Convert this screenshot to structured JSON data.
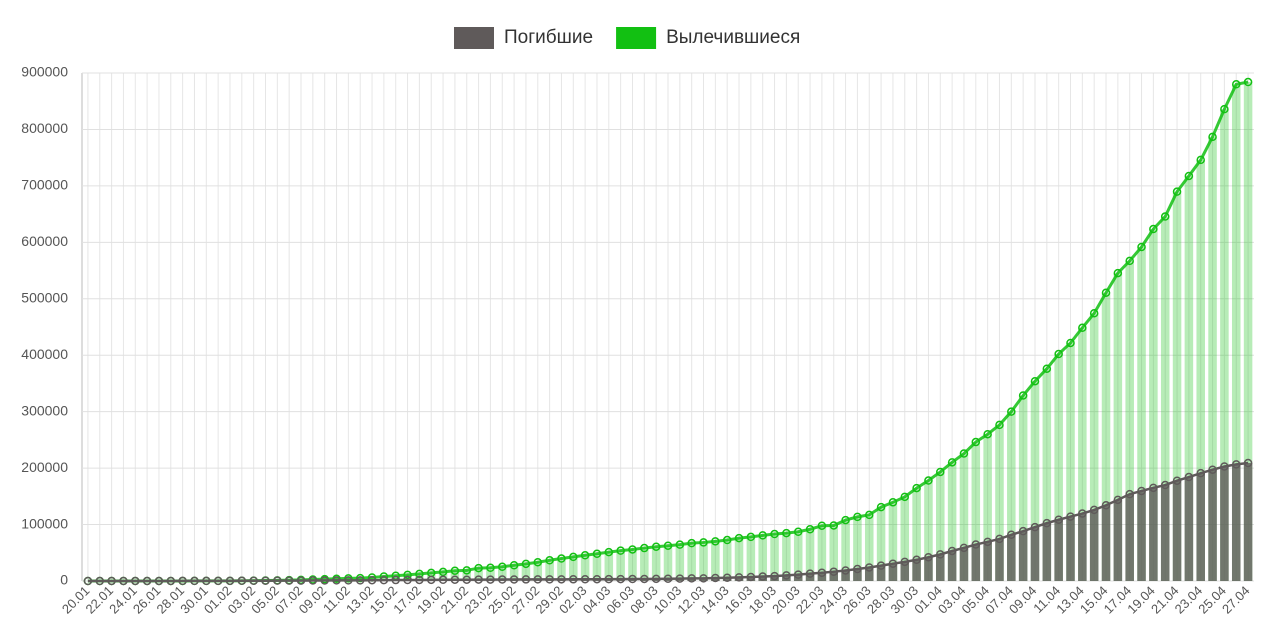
{
  "chart_data": {
    "type": "bar-line",
    "categories": [
      "20.01",
      null,
      "22.01",
      null,
      "24.01",
      null,
      "26.01",
      null,
      "28.01",
      null,
      "30.01",
      null,
      "01.02",
      null,
      "03.02",
      null,
      "05.02",
      null,
      "07.02",
      null,
      "09.02",
      null,
      "11.02",
      null,
      "13.02",
      null,
      "15.02",
      null,
      "17.02",
      null,
      "19.02",
      null,
      "21.02",
      null,
      "23.02",
      null,
      "25.02",
      null,
      "27.02",
      null,
      "29.02",
      null,
      "02.03",
      null,
      "04.03",
      null,
      "06.03",
      null,
      "08.03",
      null,
      "10.03",
      null,
      "12.03",
      null,
      "14.03",
      null,
      "16.03",
      null,
      "18.03",
      null,
      "20.03",
      null,
      "22.03",
      null,
      "24.03",
      null,
      "26.03",
      null,
      "28.03",
      null,
      "30.03",
      null,
      "01.04",
      null,
      "03.04",
      null,
      "05.04",
      null,
      "07.04",
      null,
      "09.04",
      null,
      "11.04",
      null,
      "13.04",
      null,
      "15.04",
      null,
      "17.04",
      null,
      "19.04",
      null,
      "21.04",
      null,
      "23.04",
      null,
      "25.04",
      null,
      "27.04"
    ],
    "series": [
      {
        "name": "Вылечившиеся",
        "color": "#12c012",
        "values": [
          0,
          0,
          28,
          30,
          36,
          39,
          52,
          61,
          107,
          126,
          143,
          222,
          284,
          472,
          623,
          852,
          1124,
          1487,
          2011,
          2616,
          3244,
          3946,
          4683,
          5150,
          6295,
          8058,
          9395,
          10865,
          12583,
          14352,
          16121,
          18177,
          18890,
          22886,
          23394,
          25227,
          27905,
          30384,
          33277,
          36711,
          39782,
          42716,
          45602,
          48228,
          51170,
          53796,
          55865,
          58358,
          60694,
          62494,
          64404,
          67003,
          68324,
          70251,
          72624,
          76034,
          78088,
          80840,
          83207,
          84854,
          87256,
          91692,
          97899,
          98351,
          107890,
          113604,
          117150,
          130915,
          139415,
          149082,
          164566,
          178034,
          193177,
          210263,
          225796,
          246152,
          260012,
          276515,
          300054,
          328661,
          353975,
          376096,
          402110,
          421722,
          448655,
          474261,
          510718,
          545522,
          567100,
          591800,
          623600,
          645700,
          689800,
          717600,
          746000,
          786900,
          836000,
          880000,
          884000
        ]
      },
      {
        "name": "Погибшие",
        "color": "#5f5a5a",
        "values": [
          0,
          0,
          17,
          18,
          26,
          42,
          56,
          82,
          131,
          133,
          171,
          213,
          259,
          362,
          426,
          492,
          564,
          634,
          719,
          806,
          906,
          1013,
          1113,
          1118,
          1371,
          1523,
          1666,
          1770,
          1868,
          2007,
          2122,
          2247,
          2251,
          2458,
          2469,
          2629,
          2708,
          2770,
          2814,
          2872,
          2941,
          2996,
          3085,
          3160,
          3254,
          3348,
          3460,
          3558,
          3802,
          3988,
          4262,
          4615,
          4720,
          5404,
          5819,
          6440,
          7126,
          7905,
          8733,
          9867,
          11299,
          12973,
          14623,
          16497,
          18615,
          21181,
          23970,
          27198,
          30652,
          33925,
          37582,
          42107,
          47180,
          53167,
          58787,
          64606,
          69374,
          74565,
          81865,
          88338,
          95455,
          102525,
          108503,
          114090,
          119482,
          125983,
          134177,
          143800,
          153822,
          159510,
          165044,
          169986,
          177641,
          184217,
          191061,
          197159,
          202846,
          206544,
          209000
        ]
      }
    ],
    "ylim": [
      0,
      900000
    ],
    "yticks": [
      0,
      100000,
      200000,
      300000,
      400000,
      500000,
      600000,
      700000,
      800000,
      900000
    ],
    "grid": true
  }
}
